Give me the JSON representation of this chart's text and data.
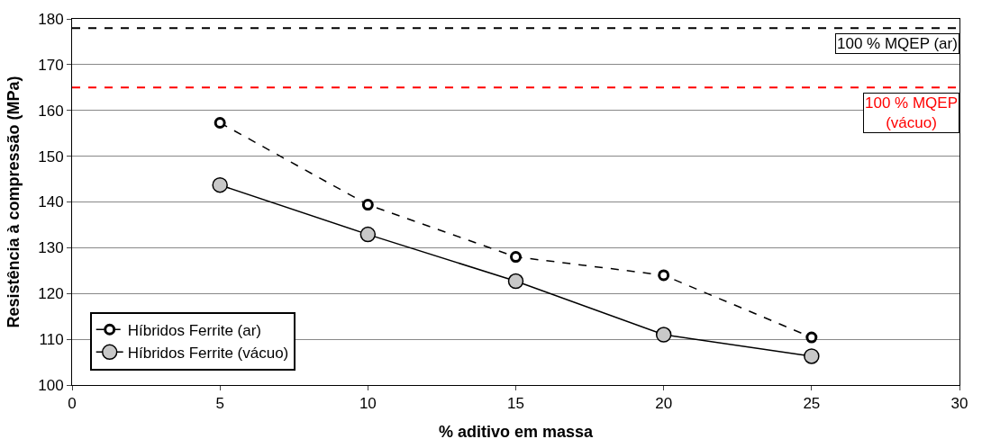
{
  "chart_data": {
    "type": "line",
    "xlabel": "% aditivo em massa",
    "ylabel": "Resistência à compressão (MPa)",
    "x": [
      5,
      10,
      15,
      20,
      25
    ],
    "series": [
      {
        "name": "Híbridos Ferrite (ar)",
        "color": "#000000",
        "line_style": "dashed",
        "values": [
          157.3,
          139.4,
          128,
          124,
          110.4
        ]
      },
      {
        "name": "Híbridos Ferrite (vácuo)",
        "color": "#000000",
        "line_style": "solid",
        "values": [
          143.7,
          132.9,
          122.7,
          111,
          106.3
        ]
      }
    ],
    "ref_lines": [
      {
        "axis": "y",
        "value": 178,
        "label": "100 % MQEP (ar)",
        "color": "#000000",
        "line_style": "dashed"
      },
      {
        "axis": "y",
        "value": 165,
        "label": "100 % MQEP\n(vácuo)",
        "color": "#ff0000",
        "line_style": "dashed"
      }
    ],
    "xlim": [
      0,
      30
    ],
    "xticks": [
      0,
      5,
      10,
      15,
      20,
      25,
      30
    ],
    "ylim": [
      100,
      180
    ],
    "yticks": [
      100,
      110,
      120,
      130,
      140,
      150,
      160,
      170,
      180
    ],
    "grid": "y",
    "legend": "bottom left",
    "marker": "circle"
  }
}
